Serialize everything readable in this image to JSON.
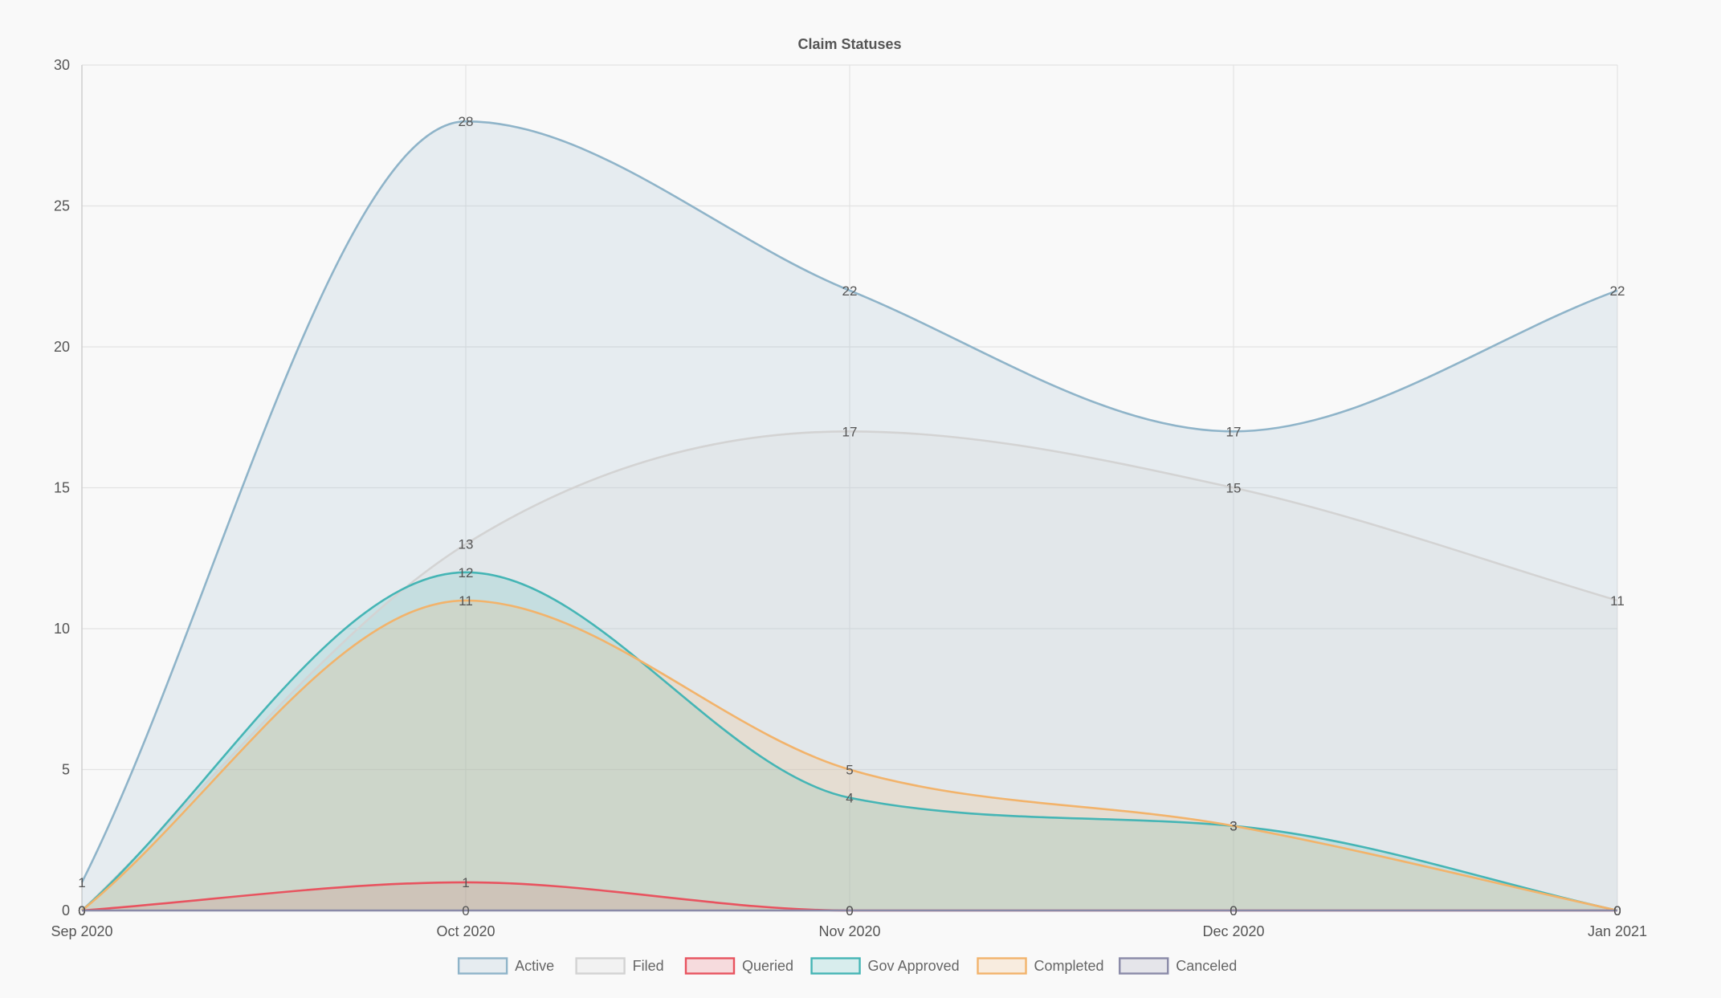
{
  "chart_data": {
    "type": "area",
    "title": "Claim Statuses",
    "xlabel": "",
    "ylabel": "",
    "categories": [
      "Sep 2020",
      "Oct 2020",
      "Nov 2020",
      "Dec 2020",
      "Jan 2021"
    ],
    "ylim": [
      0,
      30
    ],
    "yticks": [
      0,
      5,
      10,
      15,
      20,
      25,
      30
    ],
    "grid": true,
    "legend_position": "bottom",
    "data_labels": true,
    "series": [
      {
        "name": "Active",
        "values": [
          1,
          28,
          22,
          17,
          22
        ],
        "color": "#8fb4c9",
        "fill": "rgba(143,180,201,0.18)"
      },
      {
        "name": "Filed",
        "values": [
          0,
          13,
          17,
          15,
          11
        ],
        "color": "#d3d3d3",
        "fill": "rgba(211,211,211,0.18)"
      },
      {
        "name": "Queried",
        "values": [
          0,
          1,
          0,
          0,
          0
        ],
        "color": "#e8535f",
        "fill": "rgba(232,83,95,0.18)"
      },
      {
        "name": "Gov Approved",
        "values": [
          0,
          12,
          4,
          3,
          0
        ],
        "color": "#45b5b5",
        "fill": "rgba(69,181,181,0.18)"
      },
      {
        "name": "Completed",
        "values": [
          0,
          11,
          5,
          3,
          0
        ],
        "color": "#f2b36b",
        "fill": "rgba(242,179,107,0.18)"
      },
      {
        "name": "Canceled",
        "values": [
          0,
          0,
          0,
          0,
          0
        ],
        "color": "#8a8aa8",
        "fill": "rgba(138,138,168,0.18)"
      }
    ]
  }
}
